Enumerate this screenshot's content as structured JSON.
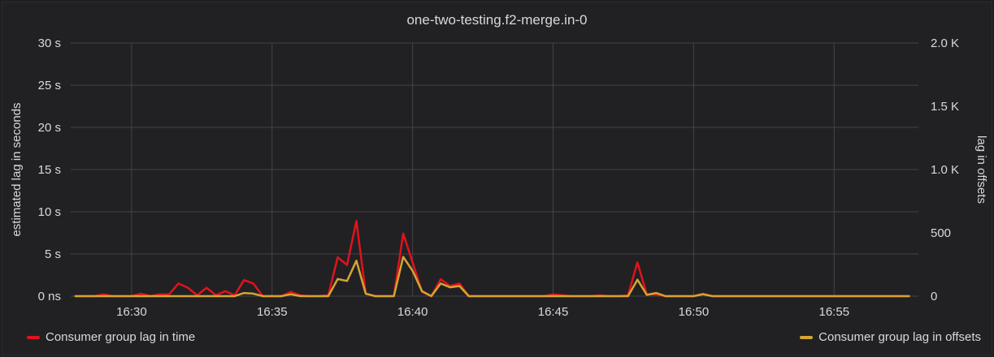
{
  "panel": {
    "title": "one-two-testing.f2-merge.in-0"
  },
  "colors": {
    "time": "#e0131b",
    "offsets": "#d4a531",
    "grid": "#444448",
    "text": "#d8d9da"
  },
  "chart_data": {
    "type": "line",
    "title": "one-two-testing.f2-merge.in-0",
    "xlabel": "",
    "ylabel": "estimated lag in seconds",
    "y2label": "lag in offsets",
    "x_ticks": [
      "16:30",
      "16:35",
      "16:40",
      "16:45",
      "16:50",
      "16:55"
    ],
    "y_ticks": [
      "0 ns",
      "5 s",
      "10 s",
      "15 s",
      "20 s",
      "25 s",
      "30 s"
    ],
    "y2_ticks": [
      "0",
      "500",
      "1.0 K",
      "1.5 K",
      "2.0 K"
    ],
    "ylim": [
      0,
      30
    ],
    "y2lim": [
      0,
      2000
    ],
    "xlim_minutes": [
      "16:27:50",
      "16:58:00"
    ],
    "grid": true,
    "legend_position": "bottom",
    "series": [
      {
        "name": "Consumer group lag in time",
        "axis": "left",
        "unit": "s",
        "x": [
          "16:28:00",
          "16:28:20",
          "16:28:40",
          "16:29:00",
          "16:29:20",
          "16:29:40",
          "16:30:00",
          "16:30:20",
          "16:30:40",
          "16:31:00",
          "16:31:20",
          "16:31:40",
          "16:32:00",
          "16:32:20",
          "16:32:40",
          "16:33:00",
          "16:33:20",
          "16:33:40",
          "16:34:00",
          "16:34:20",
          "16:34:40",
          "16:35:00",
          "16:35:20",
          "16:35:40",
          "16:36:00",
          "16:36:20",
          "16:36:40",
          "16:37:00",
          "16:37:20",
          "16:37:40",
          "16:38:00",
          "16:38:20",
          "16:38:40",
          "16:39:00",
          "16:39:20",
          "16:39:40",
          "16:40:00",
          "16:40:20",
          "16:40:40",
          "16:41:00",
          "16:41:20",
          "16:41:40",
          "16:42:00",
          "16:42:20",
          "16:42:40",
          "16:43:00",
          "16:43:20",
          "16:43:40",
          "16:44:00",
          "16:44:20",
          "16:44:40",
          "16:45:00",
          "16:45:20",
          "16:45:40",
          "16:46:00",
          "16:46:20",
          "16:46:40",
          "16:47:00",
          "16:47:20",
          "16:47:40",
          "16:48:00",
          "16:48:20",
          "16:48:40",
          "16:49:00",
          "16:49:20",
          "16:49:40",
          "16:50:00",
          "16:50:20",
          "16:50:40",
          "16:51:00",
          "16:51:20",
          "16:51:40",
          "16:52:00",
          "16:52:20",
          "16:52:40",
          "16:53:00",
          "16:53:20",
          "16:53:40",
          "16:54:00",
          "16:54:20",
          "16:54:40",
          "16:55:00",
          "16:55:20",
          "16:55:40",
          "16:56:00",
          "16:56:20",
          "16:56:40",
          "16:57:00",
          "16:57:20",
          "16:57:40"
        ],
        "values": [
          0,
          0,
          0,
          0.2,
          0,
          0,
          0,
          0.3,
          0,
          0.2,
          0.2,
          1.5,
          1.0,
          0.1,
          1.0,
          0.1,
          0.6,
          0.1,
          1.9,
          1.5,
          0,
          0,
          0,
          0.5,
          0.1,
          0,
          0,
          0.1,
          4.6,
          3.7,
          8.9,
          0.3,
          0,
          0,
          0,
          7.4,
          4.0,
          0.5,
          0,
          2.0,
          1.2,
          1.5,
          0,
          0,
          0,
          0,
          0,
          0,
          0,
          0,
          0,
          0.2,
          0.1,
          0,
          0,
          0,
          0.1,
          0,
          0,
          0.1,
          4.0,
          0.2,
          0.2,
          0,
          0,
          0,
          0,
          0.3,
          0,
          0,
          0,
          0,
          0,
          0,
          0,
          0,
          0,
          0,
          0,
          0,
          0,
          0,
          0,
          0,
          0,
          0,
          0,
          0,
          0,
          0
        ]
      },
      {
        "name": "Consumer group lag in offsets",
        "axis": "right",
        "unit": "",
        "x": [
          "16:28:00",
          "16:28:20",
          "16:28:40",
          "16:29:00",
          "16:29:20",
          "16:29:40",
          "16:30:00",
          "16:30:20",
          "16:30:40",
          "16:31:00",
          "16:31:20",
          "16:31:40",
          "16:32:00",
          "16:32:20",
          "16:32:40",
          "16:33:00",
          "16:33:20",
          "16:33:40",
          "16:34:00",
          "16:34:20",
          "16:34:40",
          "16:35:00",
          "16:35:20",
          "16:35:40",
          "16:36:00",
          "16:36:20",
          "16:36:40",
          "16:37:00",
          "16:37:20",
          "16:37:40",
          "16:38:00",
          "16:38:20",
          "16:38:40",
          "16:39:00",
          "16:39:20",
          "16:39:40",
          "16:40:00",
          "16:40:20",
          "16:40:40",
          "16:41:00",
          "16:41:20",
          "16:41:40",
          "16:42:00",
          "16:42:20",
          "16:42:40",
          "16:43:00",
          "16:43:20",
          "16:43:40",
          "16:44:00",
          "16:44:20",
          "16:44:40",
          "16:45:00",
          "16:45:20",
          "16:45:40",
          "16:46:00",
          "16:46:20",
          "16:46:40",
          "16:47:00",
          "16:47:20",
          "16:47:40",
          "16:48:00",
          "16:48:20",
          "16:48:40",
          "16:49:00",
          "16:49:20",
          "16:49:40",
          "16:50:00",
          "16:50:20",
          "16:50:40",
          "16:51:00",
          "16:51:20",
          "16:51:40",
          "16:52:00",
          "16:52:20",
          "16:52:40",
          "16:53:00",
          "16:53:20",
          "16:53:40",
          "16:54:00",
          "16:54:20",
          "16:54:40",
          "16:55:00",
          "16:55:20",
          "16:55:40",
          "16:56:00",
          "16:56:20",
          "16:56:40",
          "16:57:00",
          "16:57:20",
          "16:57:40"
        ],
        "values": [
          0,
          0,
          0,
          0,
          0,
          0,
          0,
          0,
          0,
          0,
          0,
          0,
          0,
          0,
          0,
          0,
          0,
          0,
          25,
          20,
          0,
          0,
          0,
          15,
          0,
          0,
          0,
          0,
          135,
          120,
          280,
          20,
          0,
          0,
          0,
          310,
          200,
          40,
          0,
          100,
          70,
          80,
          0,
          0,
          0,
          0,
          0,
          0,
          0,
          0,
          0,
          0,
          0,
          0,
          0,
          0,
          0,
          0,
          0,
          0,
          130,
          10,
          25,
          0,
          0,
          0,
          0,
          15,
          0,
          0,
          0,
          0,
          0,
          0,
          0,
          0,
          0,
          0,
          0,
          0,
          0,
          0,
          0,
          0,
          0,
          0,
          0,
          0,
          0,
          0
        ]
      }
    ]
  },
  "legend": {
    "time_label": "Consumer group lag in time",
    "offsets_label": "Consumer group lag in offsets"
  }
}
